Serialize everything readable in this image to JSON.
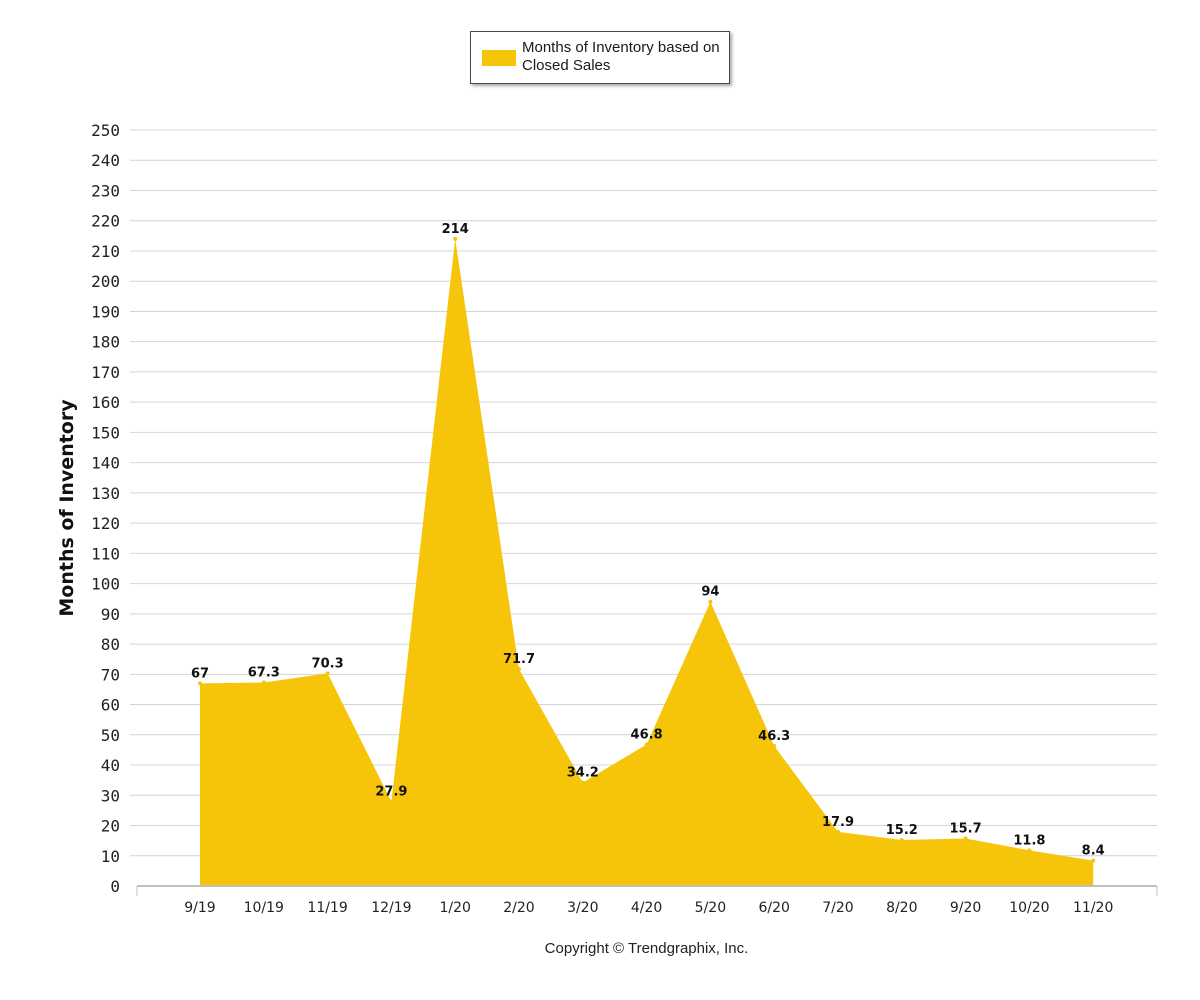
{
  "legend": {
    "label": "Months of Inventory based on Closed Sales"
  },
  "footer": {
    "copyright": "Copyright © Trendgraphix, Inc."
  },
  "colors": {
    "area_fill": "#f6c50a",
    "grid": "#d4d4d4",
    "axis": "#bfbfbf",
    "text": "#111111"
  },
  "chart_data": {
    "type": "area",
    "ylabel": "Months of Inventory",
    "xlabel": "",
    "title": "",
    "ylim": [
      0,
      250
    ],
    "y_tick_step": 10,
    "grid": true,
    "legend_position": "top-center",
    "categories": [
      "9/19",
      "10/19",
      "11/19",
      "12/19",
      "1/20",
      "2/20",
      "3/20",
      "4/20",
      "5/20",
      "6/20",
      "7/20",
      "8/20",
      "9/20",
      "10/20",
      "11/20"
    ],
    "series": [
      {
        "name": "Months of Inventory based on Closed Sales",
        "values": [
          67,
          67.3,
          70.3,
          27.9,
          214,
          71.7,
          34.2,
          46.8,
          94,
          46.3,
          17.9,
          15.2,
          15.7,
          11.8,
          8.4
        ],
        "data_labels": [
          "67",
          "67.3",
          "70.3",
          "27.9",
          "214",
          "71.7",
          "34.2",
          "46.8",
          "94",
          "46.3",
          "17.9",
          "15.2",
          "15.7",
          "11.8",
          "8.4"
        ]
      }
    ]
  }
}
